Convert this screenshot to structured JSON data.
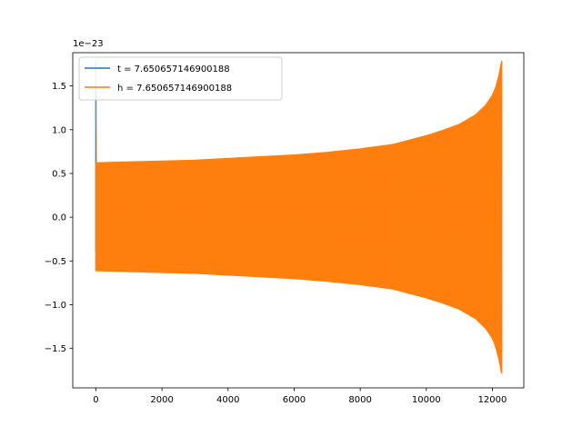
{
  "chart_data": {
    "type": "line",
    "title": "",
    "xlabel": "",
    "ylabel": "",
    "y_offset_label": "1e−23",
    "xlim": [
      -700,
      12950
    ],
    "ylim": [
      -1.95,
      1.88
    ],
    "x_ticks": [
      0,
      2000,
      4000,
      6000,
      8000,
      10000,
      12000
    ],
    "x_tick_labels": [
      "0",
      "2000",
      "4000",
      "6000",
      "8000",
      "10000",
      "12000"
    ],
    "y_ticks": [
      -1.5,
      -1.0,
      -0.5,
      0.0,
      0.5,
      1.0,
      1.5
    ],
    "y_tick_labels": [
      "−1.5",
      "−1.0",
      "−0.5",
      "0.0",
      "0.5",
      "1.0",
      "1.5"
    ],
    "grid": false,
    "legend_position": "top-left",
    "series": [
      {
        "name": "t = 7.650657146900188",
        "color": "#1f77b4",
        "kind": "spike",
        "x": [
          0,
          0,
          0,
          0
        ],
        "y": [
          -0.4,
          1.45,
          0.15,
          0.6
        ]
      },
      {
        "name": "h = 7.650657146900188",
        "color": "#ff7f0e",
        "kind": "chirp-envelope",
        "x": [
          0,
          1000,
          2000,
          3000,
          4000,
          5000,
          6000,
          7000,
          8000,
          9000,
          10000,
          10500,
          11000,
          11500,
          11800,
          12000,
          12100,
          12200,
          12280
        ],
        "upper": [
          0.62,
          0.63,
          0.64,
          0.65,
          0.67,
          0.69,
          0.71,
          0.74,
          0.78,
          0.83,
          0.93,
          0.99,
          1.06,
          1.17,
          1.28,
          1.39,
          1.48,
          1.62,
          1.78
        ],
        "lower": [
          -0.61,
          -0.62,
          -0.63,
          -0.64,
          -0.66,
          -0.68,
          -0.7,
          -0.73,
          -0.77,
          -0.82,
          -0.92,
          -0.98,
          -1.05,
          -1.16,
          -1.27,
          -1.38,
          -1.48,
          -1.62,
          -1.78
        ]
      }
    ]
  }
}
